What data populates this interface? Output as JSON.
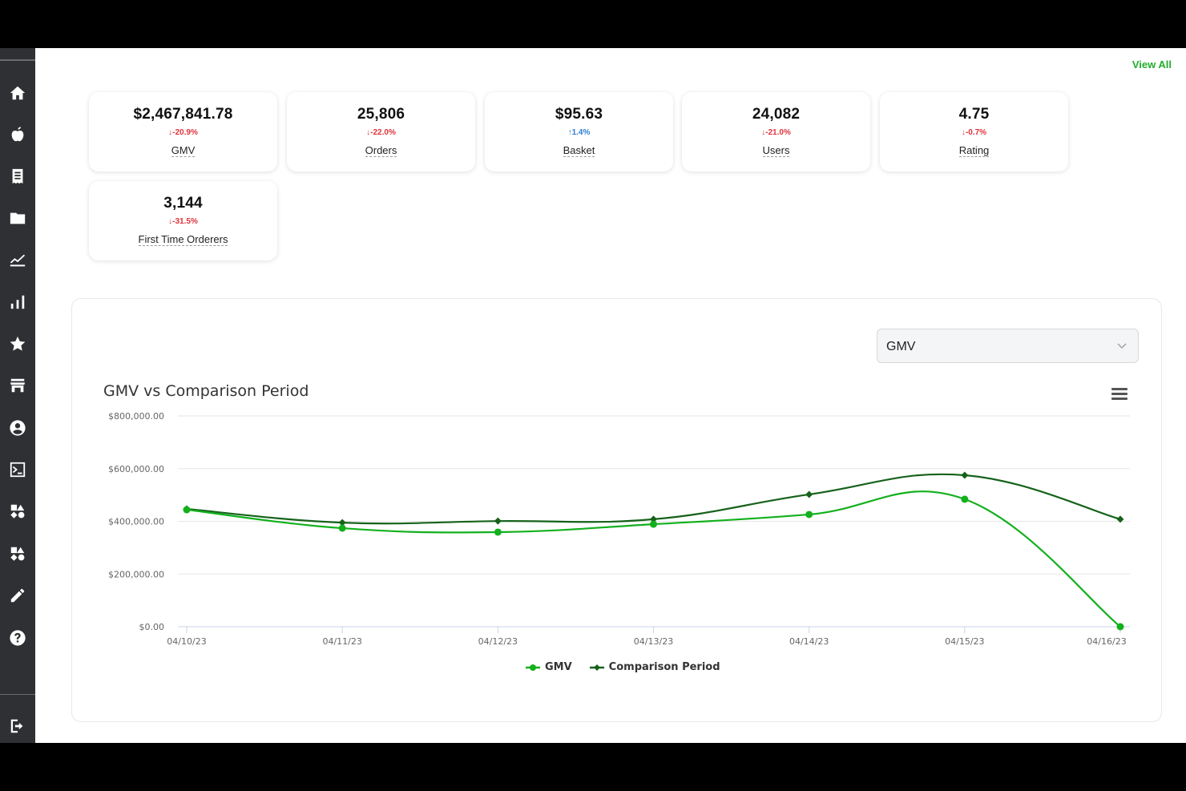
{
  "header": {
    "view_all": "View All"
  },
  "sidebar": {
    "items": [
      {
        "icon": "home-icon"
      },
      {
        "icon": "apple-icon"
      },
      {
        "icon": "receipt-icon"
      },
      {
        "icon": "folder-icon"
      },
      {
        "icon": "line-chart-icon"
      },
      {
        "icon": "bar-chart-icon"
      },
      {
        "icon": "star-icon"
      },
      {
        "icon": "store-icon"
      },
      {
        "icon": "user-circle-icon"
      },
      {
        "icon": "terminal-icon"
      },
      {
        "icon": "shapes-icon"
      },
      {
        "icon": "shapes-icon"
      },
      {
        "icon": "pencil-icon"
      },
      {
        "icon": "help-icon"
      }
    ],
    "logout_icon": "logout-icon"
  },
  "metrics": [
    {
      "value": "$2,467,841.78",
      "change": "-20.9%",
      "direction": "down",
      "label": "GMV"
    },
    {
      "value": "25,806",
      "change": "-22.0%",
      "direction": "down",
      "label": "Orders"
    },
    {
      "value": "$95.63",
      "change": "1.4%",
      "direction": "up",
      "label": "Basket"
    },
    {
      "value": "24,082",
      "change": "-21.0%",
      "direction": "down",
      "label": "Users"
    },
    {
      "value": "4.75",
      "change": "-0.7%",
      "direction": "down",
      "label": "Rating"
    },
    {
      "value": "3,144",
      "change": "-31.5%",
      "direction": "down",
      "label": "First Time Orderers"
    }
  ],
  "panel": {
    "metric_select": {
      "selected": "GMV"
    }
  },
  "colors": {
    "gmv": "#13b01d",
    "comparison": "#16621b",
    "down": "#e0333a",
    "up": "#2c7fd6",
    "accent": "#1fae2a"
  },
  "chart_data": {
    "type": "line",
    "title": "GMV vs Comparison Period",
    "categories": [
      "04/10/23",
      "04/11/23",
      "04/12/23",
      "04/13/23",
      "04/14/23",
      "04/15/23",
      "04/16/23"
    ],
    "series": [
      {
        "name": "GMV",
        "values": [
          444000,
          374000,
          359000,
          389000,
          426000,
          484000,
          0
        ]
      },
      {
        "name": "Comparison Period",
        "values": [
          447000,
          395000,
          401000,
          408000,
          502000,
          575000,
          408000
        ]
      }
    ],
    "yticks": [
      "$0.00",
      "$200,000.00",
      "$400,000.00",
      "$600,000.00",
      "$800,000.00"
    ],
    "ylim": [
      0,
      800000
    ],
    "xlabel": "",
    "ylabel": "",
    "grid": true,
    "legend_position": "bottom"
  }
}
